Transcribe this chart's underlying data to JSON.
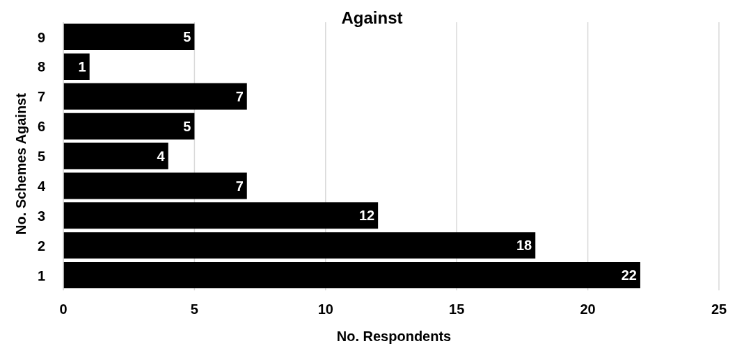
{
  "chart_data": {
    "type": "bar",
    "orientation": "horizontal",
    "title": "Against",
    "xlabel": "No. Respondents",
    "ylabel": "No. Schemes Against",
    "categories": [
      "9",
      "8",
      "7",
      "6",
      "5",
      "4",
      "3",
      "2",
      "1"
    ],
    "values": [
      5,
      1,
      7,
      5,
      4,
      7,
      12,
      18,
      22
    ],
    "color": "#000000",
    "xlim": [
      0,
      25
    ],
    "xticks": [
      0,
      5,
      10,
      15,
      20,
      25
    ],
    "grid": "x",
    "data_labels": true
  }
}
